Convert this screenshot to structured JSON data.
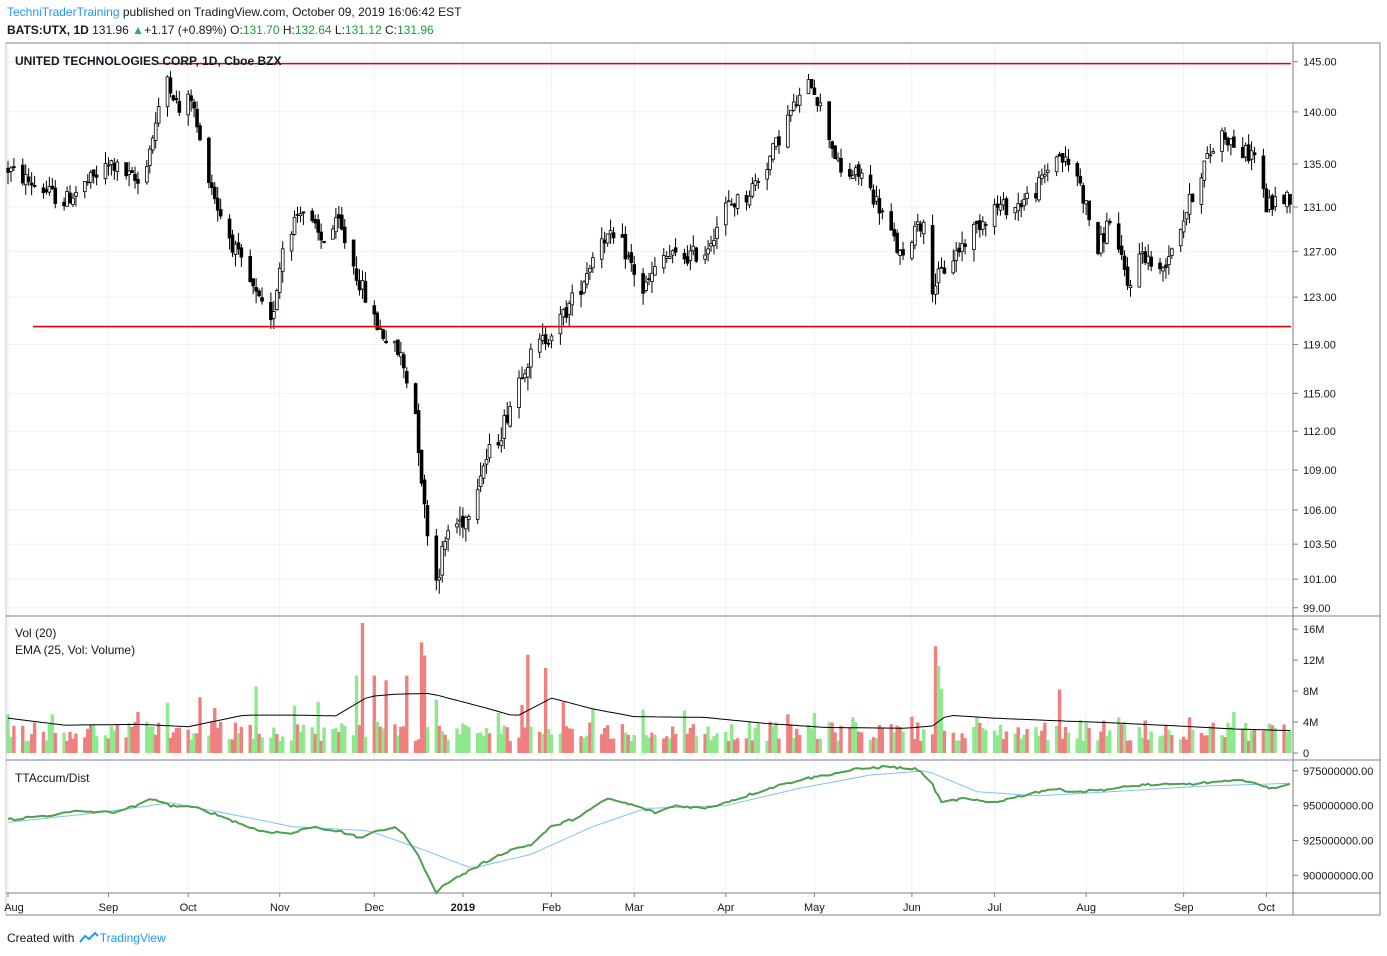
{
  "header": {
    "author": "TechniTraderTraining",
    "published": "published on TradingView.com, October 09, 2019 16:06:42 EST",
    "symbol": "BATS:UTX, 1D",
    "last": "131.96",
    "change_arrow": "▲",
    "change": "+1.17 (+0.89%)",
    "o_label": "O:",
    "o": "131.70",
    "h_label": "H:",
    "h": "132.64",
    "l_label": "L:",
    "l": "131.12",
    "c_label": "C:",
    "c": "131.96"
  },
  "footer": {
    "created_with": "Created with",
    "brand": "TradingView"
  },
  "colors": {
    "up_bar": "#8ee98e",
    "down_bar": "#f08080",
    "level": "#e00000",
    "accum": "#4f9f4f",
    "accum_ma": "#7ec4f0",
    "grid": "#eef1f5"
  },
  "chart_data": [
    {
      "type": "candlestick",
      "title": "UNITED TECHNOLOGIES CORP, 1D, Cboe BZX",
      "ylim": [
        98.5,
        146.8
      ],
      "y_ticks": [
        "145.00",
        "140.00",
        "135.00",
        "131.00",
        "127.00",
        "123.00",
        "119.00",
        "115.00",
        "112.00",
        "109.00",
        "106.00",
        "103.50",
        "101.00",
        "99.00"
      ],
      "levels": [
        {
          "name": "resistance",
          "value": 144.8
        },
        {
          "name": "support",
          "value": 120.5
        }
      ],
      "anchors": [
        [
          "2018-08-01",
          134.5
        ],
        [
          "2018-08-20",
          131.5
        ],
        [
          "2018-09-05",
          135
        ],
        [
          "2018-09-15",
          133
        ],
        [
          "2018-09-24",
          143.5
        ],
        [
          "2018-09-28",
          140
        ],
        [
          "2018-10-02",
          141.5
        ],
        [
          "2018-10-05",
          137
        ],
        [
          "2018-10-11",
          131
        ],
        [
          "2018-10-17",
          127
        ],
        [
          "2018-10-24",
          123
        ],
        [
          "2018-10-29",
          120.5
        ],
        [
          "2018-11-02",
          127.5
        ],
        [
          "2018-11-08",
          131
        ],
        [
          "2018-11-15",
          128
        ],
        [
          "2018-11-21",
          129.5
        ],
        [
          "2018-11-27",
          125
        ],
        [
          "2018-12-03",
          121
        ],
        [
          "2018-12-07",
          119.5
        ],
        [
          "2018-12-12",
          118
        ],
        [
          "2018-12-17",
          113.5
        ],
        [
          "2018-12-20",
          106
        ],
        [
          "2018-12-24",
          101
        ],
        [
          "2018-12-28",
          104.5
        ],
        [
          "2019-01-03",
          105.5
        ],
        [
          "2019-01-08",
          109
        ],
        [
          "2019-01-15",
          112
        ],
        [
          "2019-01-22",
          117
        ],
        [
          "2019-01-28",
          119
        ],
        [
          "2019-02-04",
          121
        ],
        [
          "2019-02-11",
          124
        ],
        [
          "2019-02-18",
          128.5
        ],
        [
          "2019-02-25",
          127.5
        ],
        [
          "2019-03-04",
          123.5
        ],
        [
          "2019-03-11",
          126.5
        ],
        [
          "2019-03-18",
          126.5
        ],
        [
          "2019-03-25",
          127
        ],
        [
          "2019-04-01",
          131
        ],
        [
          "2019-04-08",
          132
        ],
        [
          "2019-04-15",
          135
        ],
        [
          "2019-04-23",
          140
        ],
        [
          "2019-04-30",
          143
        ],
        [
          "2019-05-03",
          140.5
        ],
        [
          "2019-05-10",
          134
        ],
        [
          "2019-05-17",
          134
        ],
        [
          "2019-05-23",
          131
        ],
        [
          "2019-05-31",
          126
        ],
        [
          "2019-06-05",
          130
        ],
        [
          "2019-06-07",
          129
        ],
        [
          "2019-06-10",
          124
        ],
        [
          "2019-06-17",
          126.5
        ],
        [
          "2019-06-24",
          129
        ],
        [
          "2019-07-01",
          131
        ],
        [
          "2019-07-08",
          131
        ],
        [
          "2019-07-15",
          132.5
        ],
        [
          "2019-07-22",
          136
        ],
        [
          "2019-07-29",
          134
        ],
        [
          "2019-08-05",
          127
        ],
        [
          "2019-08-09",
          130
        ],
        [
          "2019-08-15",
          124
        ],
        [
          "2019-08-20",
          127
        ],
        [
          "2019-08-26",
          125
        ],
        [
          "2019-09-03",
          130
        ],
        [
          "2019-09-10",
          135
        ],
        [
          "2019-09-16",
          138
        ],
        [
          "2019-09-23",
          136
        ],
        [
          "2019-09-27",
          136
        ],
        [
          "2019-10-01",
          131
        ],
        [
          "2019-10-04",
          131.5
        ],
        [
          "2019-10-09",
          132
        ]
      ]
    },
    {
      "type": "bar",
      "title": "Vol (20)",
      "series_name": "EMA (25, Vol: Volume)",
      "ylim": [
        0,
        16.8
      ],
      "y_ticks": [
        "16M",
        "12M",
        "8M",
        "4M",
        "0"
      ],
      "tick_values": [
        16,
        12,
        8,
        4,
        0
      ],
      "spikes": [
        [
          "2018-08-01",
          5
        ],
        [
          "2018-08-16",
          5
        ],
        [
          "2018-09-14",
          5.3
        ],
        [
          "2018-09-24",
          6.5
        ],
        [
          "2018-10-05",
          7.2
        ],
        [
          "2018-10-10",
          5.8
        ],
        [
          "2018-10-24",
          8.6
        ],
        [
          "2018-11-06",
          6.1
        ],
        [
          "2018-11-14",
          6.6
        ],
        [
          "2018-11-27",
          10
        ],
        [
          "2018-11-29",
          16.8
        ],
        [
          "2018-12-03",
          10
        ],
        [
          "2018-12-07",
          9.4
        ],
        [
          "2018-12-14",
          10
        ],
        [
          "2018-12-19",
          14.3
        ],
        [
          "2018-12-20",
          12.6
        ],
        [
          "2018-12-24",
          6.9
        ],
        [
          "2019-01-14",
          5.2
        ],
        [
          "2019-01-22",
          6.2
        ],
        [
          "2019-01-24",
          12.7
        ],
        [
          "2019-01-30",
          11
        ],
        [
          "2019-02-05",
          6.6
        ],
        [
          "2019-02-15",
          5.7
        ],
        [
          "2019-03-04",
          5.6
        ],
        [
          "2019-03-18",
          5.5
        ],
        [
          "2019-04-22",
          5
        ],
        [
          "2019-05-01",
          5.2
        ],
        [
          "2019-05-14",
          4.6
        ],
        [
          "2019-06-03",
          4.7
        ],
        [
          "2019-06-11",
          13.8
        ],
        [
          "2019-06-12",
          11.3
        ],
        [
          "2019-06-13",
          8.3
        ],
        [
          "2019-06-25",
          4.6
        ],
        [
          "2019-07-23",
          8.2
        ],
        [
          "2019-07-30",
          4.3
        ],
        [
          "2019-08-07",
          4.2
        ],
        [
          "2019-08-12",
          4.6
        ],
        [
          "2019-08-21",
          4.2
        ],
        [
          "2019-09-05",
          4.6
        ],
        [
          "2019-09-20",
          5.3
        ],
        [
          "2019-10-02",
          3.8
        ]
      ],
      "ema_anchors": [
        [
          "2018-08-01",
          4.5
        ],
        [
          "2018-08-20",
          3.6
        ],
        [
          "2018-09-15",
          3.7
        ],
        [
          "2018-10-01",
          3.4
        ],
        [
          "2018-10-20",
          4.9
        ],
        [
          "2018-11-05",
          4.9
        ],
        [
          "2018-11-20",
          4.8
        ],
        [
          "2018-12-01",
          7.3
        ],
        [
          "2018-12-10",
          7.6
        ],
        [
          "2018-12-22",
          7.7
        ],
        [
          "2019-01-10",
          5.8
        ],
        [
          "2019-01-20",
          4.7
        ],
        [
          "2019-02-01",
          7.1
        ],
        [
          "2019-02-15",
          5.7
        ],
        [
          "2019-03-01",
          4.7
        ],
        [
          "2019-03-25",
          4.6
        ],
        [
          "2019-04-15",
          3.8
        ],
        [
          "2019-05-05",
          3.3
        ],
        [
          "2019-06-01",
          3.2
        ],
        [
          "2019-06-10",
          3.5
        ],
        [
          "2019-06-15",
          4.9
        ],
        [
          "2019-07-01",
          4.5
        ],
        [
          "2019-07-20",
          4.2
        ],
        [
          "2019-08-10",
          3.9
        ],
        [
          "2019-09-01",
          3.5
        ],
        [
          "2019-09-20",
          3.1
        ],
        [
          "2019-10-09",
          2.9
        ]
      ],
      "base_level": 2.8
    },
    {
      "type": "line",
      "title": "TTAccum/Dist",
      "ylim": [
        888000000,
        982000000
      ],
      "y_ticks": [
        "975000000.00",
        "950000000.00",
        "925000000.00",
        "900000000.00"
      ],
      "tick_values": [
        975000000,
        950000000,
        925000000,
        900000000
      ],
      "series": [
        {
          "name": "accum",
          "anchors": [
            [
              "2018-08-01",
              940000000
            ],
            [
              "2018-08-15",
              943000000
            ],
            [
              "2018-08-25",
              946000000
            ],
            [
              "2018-09-05",
              945000000
            ],
            [
              "2018-09-14",
              950000000
            ],
            [
              "2018-09-19",
              955000000
            ],
            [
              "2018-09-25",
              950000000
            ],
            [
              "2018-10-05",
              948000000
            ],
            [
              "2018-10-15",
              940000000
            ],
            [
              "2018-10-25",
              932000000
            ],
            [
              "2018-11-05",
              930000000
            ],
            [
              "2018-11-12",
              935000000
            ],
            [
              "2018-11-20",
              932000000
            ],
            [
              "2018-11-28",
              927000000
            ],
            [
              "2018-12-05",
              932000000
            ],
            [
              "2018-12-10",
              935000000
            ],
            [
              "2018-12-15",
              925000000
            ],
            [
              "2018-12-20",
              905000000
            ],
            [
              "2018-12-24",
              888000000
            ],
            [
              "2018-12-28",
              895000000
            ],
            [
              "2019-01-04",
              903000000
            ],
            [
              "2019-01-10",
              910000000
            ],
            [
              "2019-01-18",
              918000000
            ],
            [
              "2019-01-25",
              922000000
            ],
            [
              "2019-02-01",
              935000000
            ],
            [
              "2019-02-08",
              940000000
            ],
            [
              "2019-02-15",
              948000000
            ],
            [
              "2019-02-20",
              955000000
            ],
            [
              "2019-03-01",
              950000000
            ],
            [
              "2019-03-08",
              945000000
            ],
            [
              "2019-03-15",
              950000000
            ],
            [
              "2019-03-25",
              948000000
            ],
            [
              "2019-04-05",
              955000000
            ],
            [
              "2019-04-15",
              962000000
            ],
            [
              "2019-04-25",
              968000000
            ],
            [
              "2019-05-05",
              972000000
            ],
            [
              "2019-05-15",
              976000000
            ],
            [
              "2019-05-25",
              978000000
            ],
            [
              "2019-06-05",
              976000000
            ],
            [
              "2019-06-10",
              965000000
            ],
            [
              "2019-06-13",
              952000000
            ],
            [
              "2019-06-20",
              955000000
            ],
            [
              "2019-06-30",
              952000000
            ],
            [
              "2019-07-10",
              957000000
            ],
            [
              "2019-07-20",
              962000000
            ],
            [
              "2019-07-30",
              960000000
            ],
            [
              "2019-08-10",
              962000000
            ],
            [
              "2019-08-20",
              965000000
            ],
            [
              "2019-09-01",
              965000000
            ],
            [
              "2019-09-15",
              967000000
            ],
            [
              "2019-09-25",
              968000000
            ],
            [
              "2019-10-02",
              962000000
            ],
            [
              "2019-10-09",
              966000000
            ]
          ]
        },
        {
          "name": "accum-ma",
          "anchors": [
            [
              "2018-08-01",
              938000000
            ],
            [
              "2018-09-01",
              945000000
            ],
            [
              "2018-09-25",
              952000000
            ],
            [
              "2018-10-15",
              944000000
            ],
            [
              "2018-11-05",
              935000000
            ],
            [
              "2018-12-01",
              932000000
            ],
            [
              "2018-12-20",
              918000000
            ],
            [
              "2019-01-05",
              905000000
            ],
            [
              "2019-01-25",
              915000000
            ],
            [
              "2019-02-15",
              935000000
            ],
            [
              "2019-03-05",
              948000000
            ],
            [
              "2019-04-01",
              950000000
            ],
            [
              "2019-04-25",
              962000000
            ],
            [
              "2019-05-20",
              972000000
            ],
            [
              "2019-06-08",
              975000000
            ],
            [
              "2019-06-25",
              960000000
            ],
            [
              "2019-07-15",
              957000000
            ],
            [
              "2019-08-10",
              960000000
            ],
            [
              "2019-09-10",
              964000000
            ],
            [
              "2019-10-09",
              966000000
            ]
          ]
        }
      ]
    },
    {
      "type": "time_axis",
      "x_ticks": [
        {
          "label": "Aug",
          "date": "2018-08-01"
        },
        {
          "label": "Sep",
          "date": "2018-09-04"
        },
        {
          "label": "Oct",
          "date": "2018-10-01"
        },
        {
          "label": "Nov",
          "date": "2018-11-01"
        },
        {
          "label": "Dec",
          "date": "2018-12-03"
        },
        {
          "label": "2019",
          "date": "2019-01-02",
          "bold": true
        },
        {
          "label": "Feb",
          "date": "2019-02-01"
        },
        {
          "label": "Mar",
          "date": "2019-03-01"
        },
        {
          "label": "Apr",
          "date": "2019-04-01"
        },
        {
          "label": "May",
          "date": "2019-05-01"
        },
        {
          "label": "Jun",
          "date": "2019-06-03"
        },
        {
          "label": "Jul",
          "date": "2019-07-01"
        },
        {
          "label": "Aug",
          "date": "2019-08-01"
        },
        {
          "label": "Sep",
          "date": "2019-09-03"
        },
        {
          "label": "Oct",
          "date": "2019-10-01"
        }
      ],
      "range": [
        "2018-08-01",
        "2019-10-09"
      ]
    }
  ]
}
